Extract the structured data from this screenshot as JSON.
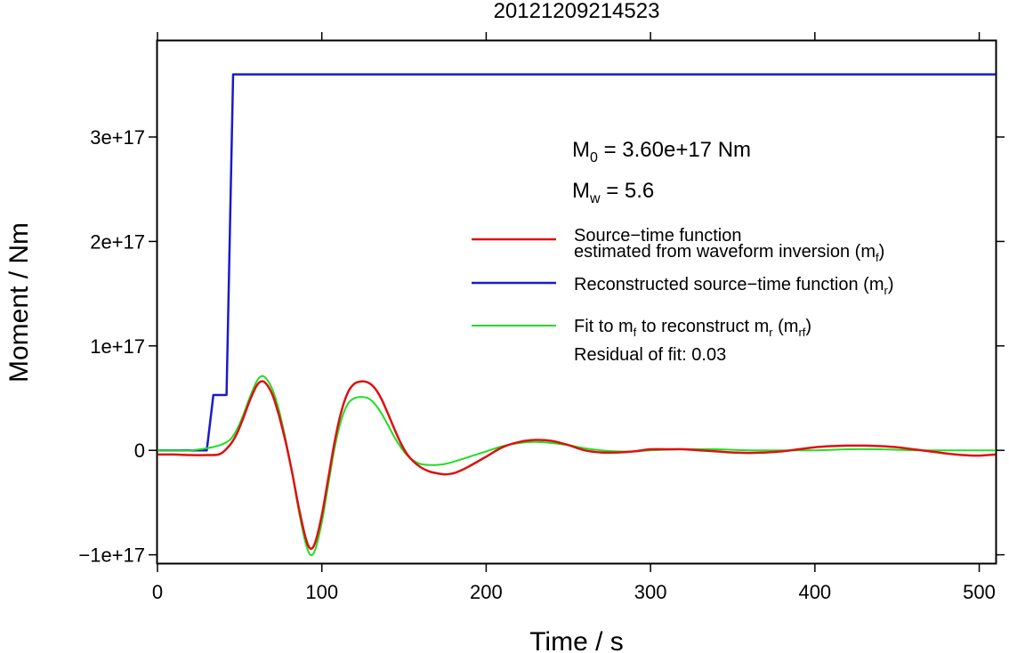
{
  "chart_data": {
    "type": "line",
    "title": "20121209214523",
    "xlabel": "Time / s",
    "ylabel": "Moment / Nm",
    "xlim": [
      0,
      510
    ],
    "ylim": [
      -1.08e+17,
      3.92e+17
    ],
    "x_ticks": [
      0,
      100,
      200,
      300,
      400,
      500
    ],
    "x_tick_labels": [
      "0",
      "100",
      "200",
      "300",
      "400",
      "500"
    ],
    "y_ticks": [
      -1e+17,
      0,
      1e+17,
      2e+17,
      3e+17
    ],
    "y_tick_labels": [
      "−1e+17",
      "0",
      "1e+17",
      "2e+17",
      "3e+17"
    ],
    "grid": false,
    "annotations": {
      "m0": {
        "symbol": "M",
        "sub": "0",
        "text": " = 3.60e+17 Nm"
      },
      "mw": {
        "symbol": "M",
        "sub": "w",
        "text": " = 5.6"
      },
      "residual": "Residual of fit: 0.03"
    },
    "legend": {
      "placement": "right",
      "entries": [
        {
          "line1": "Source−time function",
          "line2": "estimated from waveform inversion (m",
          "sub": "f",
          "close": ")"
        },
        {
          "line1": "Reconstructed source−time function (m",
          "sub": "r",
          "close": ")"
        },
        {
          "line1": "Fit to m",
          "sub_a": "f",
          "mid": " to reconstruct m",
          "sub_b": "r",
          "mid2": " (m",
          "sub_c": "rf",
          "close": ")"
        }
      ]
    },
    "series": [
      {
        "key": "mf",
        "color": "#dd1111",
        "x": [
          0,
          10,
          20,
          30,
          38,
          44,
          48,
          52,
          56,
          60,
          63,
          66,
          70,
          74,
          78,
          82,
          86,
          90,
          93,
          96,
          100,
          104,
          108,
          112,
          116,
          120,
          124,
          128,
          132,
          136,
          140,
          144,
          148,
          152,
          156,
          160,
          165,
          170,
          175,
          180,
          185,
          190,
          200,
          210,
          220,
          230,
          240,
          250,
          260,
          270,
          280,
          290,
          300,
          310,
          320,
          330,
          340,
          350,
          360,
          370,
          380,
          390,
          400,
          410,
          420,
          430,
          440,
          450,
          460,
          470,
          480,
          490,
          500,
          510
        ],
        "y": [
          -0.04,
          -0.04,
          -0.045,
          -0.045,
          -0.035,
          0.05,
          0.15,
          0.3,
          0.47,
          0.61,
          0.66,
          0.64,
          0.53,
          0.33,
          0.08,
          -0.22,
          -0.55,
          -0.83,
          -0.94,
          -0.88,
          -0.62,
          -0.26,
          0.1,
          0.38,
          0.56,
          0.64,
          0.66,
          0.65,
          0.6,
          0.5,
          0.36,
          0.21,
          0.07,
          -0.04,
          -0.11,
          -0.16,
          -0.2,
          -0.22,
          -0.23,
          -0.22,
          -0.19,
          -0.15,
          -0.06,
          0.03,
          0.08,
          0.1,
          0.09,
          0.05,
          0.0,
          -0.02,
          -0.02,
          -0.01,
          0.01,
          0.01,
          0.01,
          0.0,
          -0.01,
          -0.02,
          -0.025,
          -0.02,
          -0.01,
          0.01,
          0.03,
          0.04,
          0.045,
          0.045,
          0.04,
          0.03,
          0.01,
          -0.01,
          -0.03,
          -0.045,
          -0.05,
          -0.04
        ]
      },
      {
        "key": "mr",
        "color": "#1a1acc",
        "x": [
          0,
          30,
          34,
          42,
          46,
          510
        ],
        "y": [
          0,
          0,
          0.53,
          0.53,
          3.6,
          3.6
        ]
      },
      {
        "key": "mrf",
        "color": "#22dd22",
        "x": [
          0,
          10,
          20,
          30,
          38,
          44,
          48,
          52,
          56,
          60,
          63,
          66,
          70,
          74,
          78,
          82,
          86,
          90,
          93,
          96,
          100,
          104,
          108,
          112,
          116,
          120,
          124,
          128,
          132,
          136,
          140,
          144,
          148,
          152,
          156,
          160,
          165,
          170,
          175,
          180,
          190,
          200,
          210,
          220,
          230,
          240,
          250,
          260,
          270,
          280,
          290,
          300,
          320,
          340,
          360,
          380,
          400,
          420,
          440,
          460,
          480,
          500,
          510
        ],
        "y": [
          0,
          0,
          0,
          0.02,
          0.05,
          0.1,
          0.19,
          0.33,
          0.5,
          0.65,
          0.71,
          0.69,
          0.58,
          0.38,
          0.1,
          -0.22,
          -0.58,
          -0.88,
          -1.0,
          -0.95,
          -0.69,
          -0.32,
          0.04,
          0.3,
          0.45,
          0.5,
          0.51,
          0.5,
          0.45,
          0.36,
          0.25,
          0.13,
          0.03,
          -0.05,
          -0.1,
          -0.13,
          -0.14,
          -0.14,
          -0.13,
          -0.11,
          -0.06,
          -0.01,
          0.04,
          0.07,
          0.08,
          0.07,
          0.05,
          0.02,
          0.0,
          -0.01,
          -0.01,
          0.0,
          0.01,
          0.01,
          0.0,
          0.0,
          0.0,
          0.01,
          0.01,
          0.0,
          0.0,
          0.0,
          0.0
        ]
      }
    ]
  }
}
